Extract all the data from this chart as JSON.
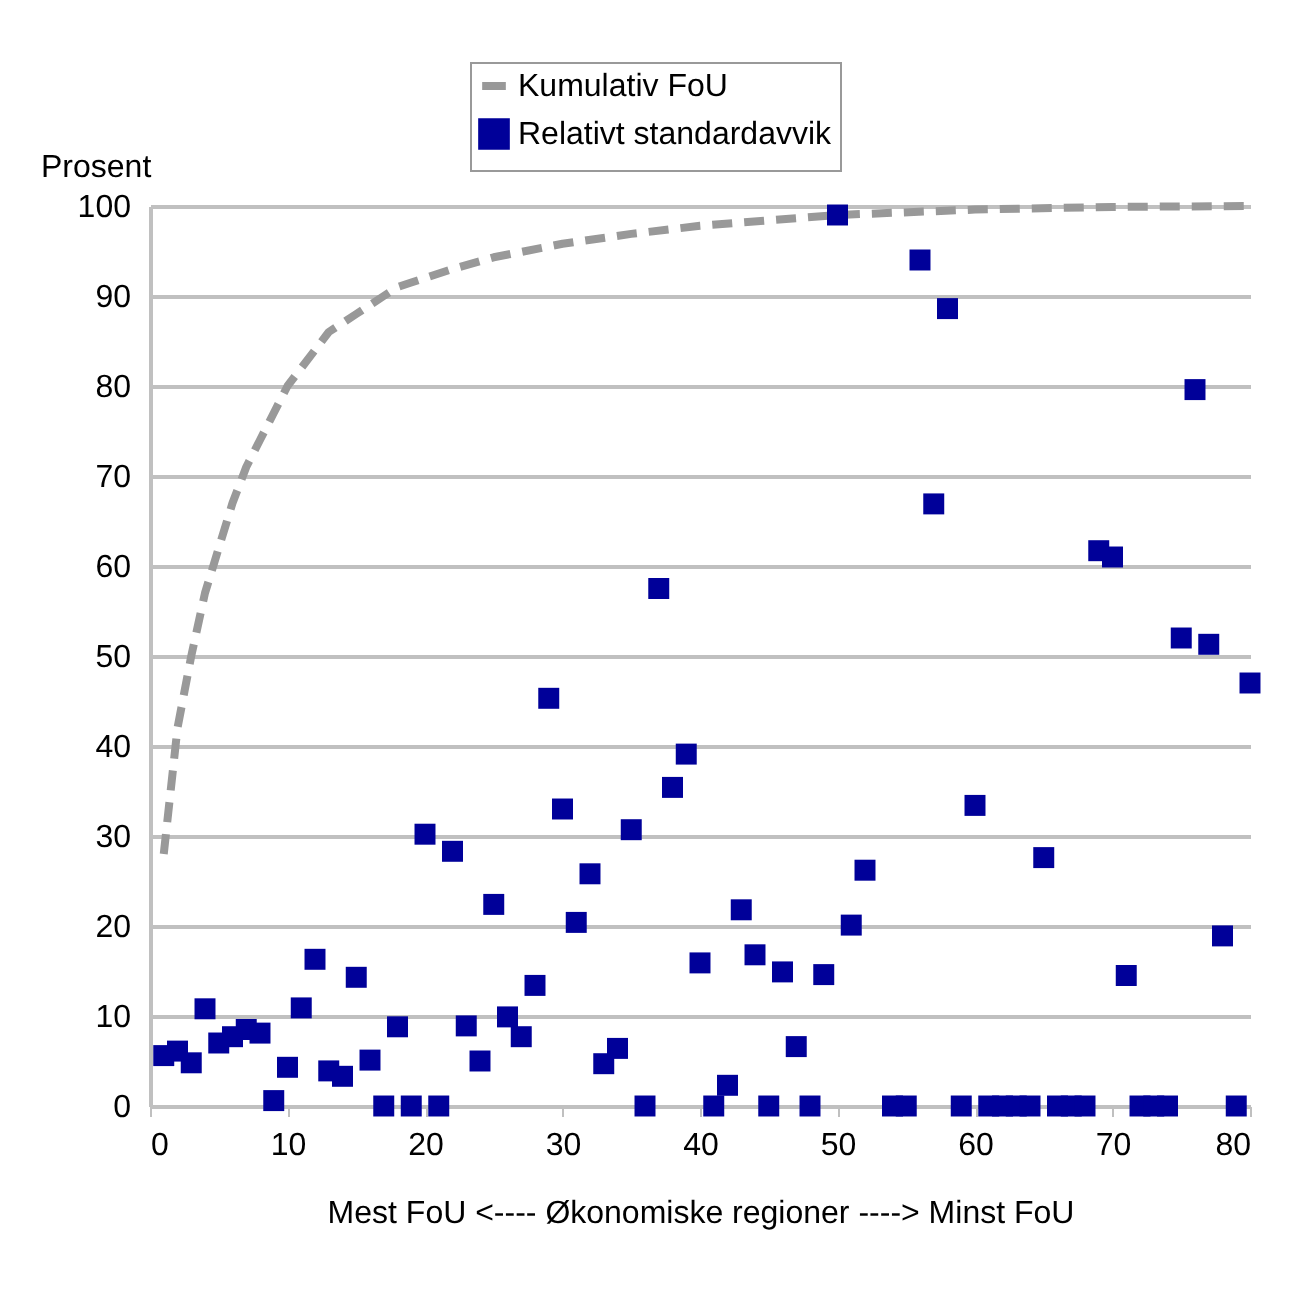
{
  "chart_data": {
    "type": "scatter",
    "xlabel": "Mest FoU  <---- Økonomiske regioner ---->  Minst FoU",
    "ylabel": "Prosent",
    "xlim": [
      0,
      80
    ],
    "xticks": [
      0,
      10,
      20,
      30,
      40,
      50,
      60,
      70,
      80
    ],
    "ylim": [
      0,
      100
    ],
    "yticks": [
      0,
      10,
      20,
      30,
      40,
      50,
      60,
      70,
      80,
      90,
      100
    ],
    "grid": "y",
    "legend": "top",
    "series": [
      {
        "name": "Kumulativ FoU",
        "type": "line",
        "color": "#999999",
        "line_style": "dashed",
        "marker": "none",
        "x": [
          1,
          2,
          3,
          4,
          5,
          6,
          7,
          8,
          9,
          10,
          11,
          12,
          13,
          14,
          15,
          16,
          17,
          18,
          19,
          20,
          22,
          25,
          30,
          35,
          40,
          45,
          50,
          60,
          70,
          80
        ],
        "values": [
          28,
          42,
          50,
          57,
          62,
          67,
          71,
          74,
          77,
          80,
          82,
          84,
          86,
          87,
          88,
          89,
          90,
          91,
          91.5,
          92,
          93,
          94.3,
          95.8,
          96.9,
          97.8,
          98.4,
          99,
          99.6,
          99.9,
          100
        ]
      },
      {
        "name": "Relativt standardavvik",
        "type": "scatter",
        "color": "#000099",
        "marker": "square",
        "x": [
          1,
          2,
          3,
          4,
          5,
          6,
          7,
          8,
          9,
          10,
          11,
          12,
          13,
          14,
          15,
          16,
          17,
          18,
          19,
          20,
          21,
          22,
          23,
          24,
          25,
          26,
          27,
          28,
          29,
          30,
          31,
          32,
          33,
          34,
          35,
          36,
          37,
          38,
          39,
          40,
          41,
          42,
          43,
          44,
          45,
          46,
          47,
          48,
          49,
          50,
          51,
          52,
          54,
          55,
          56,
          57,
          58,
          59,
          60,
          61,
          62,
          63,
          64,
          65,
          66,
          67,
          68,
          69,
          70,
          71,
          72,
          73,
          74,
          75,
          76,
          77,
          78,
          79,
          80
        ],
        "values": [
          5.6,
          6.1,
          4.8,
          10.8,
          7.0,
          7.7,
          8.5,
          8.1,
          0.6,
          4.3,
          10.9,
          16.3,
          3.9,
          3.3,
          14.3,
          5.1,
          0,
          8.8,
          0,
          30.2,
          0,
          28.3,
          8.9,
          5.0,
          22.4,
          9.9,
          7.7,
          13.4,
          45.3,
          33,
          20.4,
          25.8,
          4.7,
          6.4,
          30.7,
          0,
          57.5,
          35.4,
          39.1,
          15.9,
          0,
          2.3,
          21.8,
          16.8,
          0,
          14.9,
          6.6,
          0,
          14.6,
          99,
          20.1,
          26.2,
          0,
          0,
          94,
          66.9,
          88.6,
          0,
          33.4,
          0,
          0,
          0,
          0,
          27.6,
          0,
          0,
          0,
          61.7,
          61,
          14.5,
          0,
          0,
          0,
          52,
          79.6,
          51.3,
          18.9,
          0,
          47
        ]
      }
    ]
  }
}
